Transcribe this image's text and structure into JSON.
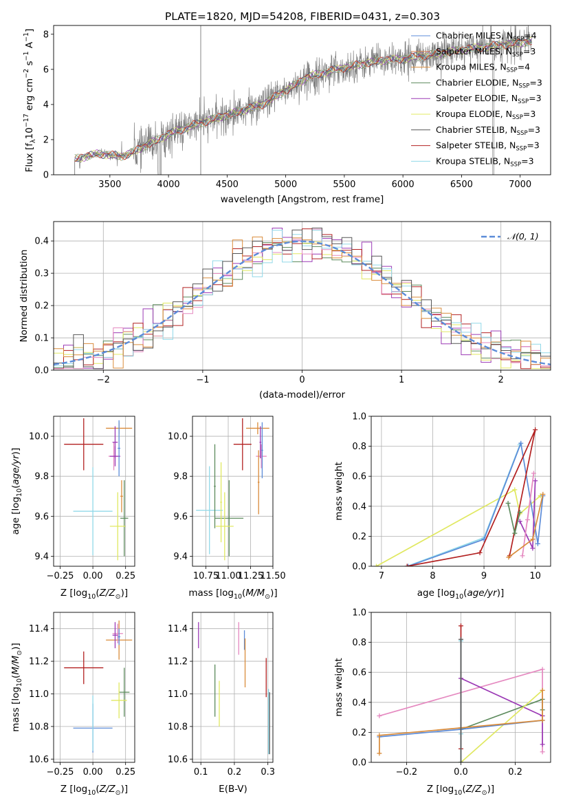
{
  "title": "PLATE=1820, MJD=54208, FIBERID=0431, z=0.303",
  "spectrum": {
    "type": "line",
    "xlabel": "wavelength [Angstrom, rest frame]",
    "ylabel": "Flux [f$_\\lambda$10$^{-17}$ erg cm$^{-2}$ s$^{-1}$ A$^{-1}$]",
    "ylabel_parts": [
      "Flux [f",
      "λ",
      "10",
      "−17",
      " erg cm",
      "−2",
      " s",
      "−1",
      " A",
      "−1",
      "]"
    ],
    "xlim": [
      3020,
      7260
    ],
    "ylim": [
      0,
      8.5
    ],
    "xticks": [
      3500,
      4000,
      4500,
      5000,
      5500,
      6000,
      6500,
      7000
    ],
    "yticks": [
      0,
      2,
      4,
      6,
      8
    ],
    "x_range_data": [
      3200,
      7100
    ],
    "features": {
      "spike_x": 4275,
      "drop_x": [
        3915,
        3935,
        6770
      ],
      "step_up_x": 3205
    },
    "continuum": [
      [
        3200,
        0.9
      ],
      [
        3400,
        1.2
      ],
      [
        3600,
        1.05
      ],
      [
        3700,
        1.3
      ],
      [
        3850,
        1.8
      ],
      [
        4000,
        2.3
      ],
      [
        4200,
        2.8
      ],
      [
        4500,
        3.4
      ],
      [
        4800,
        4.0
      ],
      [
        5000,
        4.8
      ],
      [
        5200,
        5.6
      ],
      [
        5500,
        6.1
      ],
      [
        5800,
        6.5
      ],
      [
        6000,
        6.6
      ],
      [
        6300,
        6.9
      ],
      [
        6600,
        7.2
      ],
      [
        7000,
        7.5
      ],
      [
        7100,
        7.6
      ]
    ],
    "legend_entries": [
      "Chabrier MILES, N$_{SSP}$=4",
      "Salpeter MILES, N$_{SSP}$=3",
      "Kroupa MILES, N$_{SSP}$=4",
      "Chabrier ELODIE, N$_{SSP}$=3",
      "Salpeter ELODIE, N$_{SSP}$=3",
      "Kroupa ELODIE, N$_{SSP}$=3",
      "Chabrier STELIB, N$_{SSP}$=3",
      "Salpeter STELIB, N$_{SSP}$=3",
      "Kroupa STELIB, N$_{SSP}$=3"
    ],
    "legend_labels": [
      {
        "pre": "Chabrier MILES, N",
        "sub": "SSP",
        "post": "=4"
      },
      {
        "pre": "Salpeter MILES, N",
        "sub": "SSP",
        "post": "=3"
      },
      {
        "pre": "Kroupa MILES, N",
        "sub": "SSP",
        "post": "=4"
      },
      {
        "pre": "Chabrier ELODIE, N",
        "sub": "SSP",
        "post": "=3"
      },
      {
        "pre": "Salpeter ELODIE, N",
        "sub": "SSP",
        "post": "=3"
      },
      {
        "pre": "Kroupa ELODIE, N",
        "sub": "SSP",
        "post": "=3"
      },
      {
        "pre": "Chabrier STELIB, N",
        "sub": "SSP",
        "post": "=3"
      },
      {
        "pre": "Salpeter STELIB, N",
        "sub": "SSP",
        "post": "=3"
      },
      {
        "pre": "Kroupa STELIB, N",
        "sub": "SSP",
        "post": "=3"
      }
    ],
    "legend_placement": "right",
    "series_colors": [
      "#5b8bd8",
      "#dd8452",
      "#d98b3a",
      "#5c8a5c",
      "#9b39b5",
      "#e0e860",
      "#555555",
      "#b22020",
      "#90d8e8"
    ]
  },
  "residual_hist": {
    "type": "histogram",
    "xlabel": "(data-model)/error",
    "ylabel": "Normed distribution",
    "xlim": [
      -2.5,
      2.5
    ],
    "ylim": [
      0,
      0.46
    ],
    "xticks": [
      -2,
      -1,
      0,
      1,
      2
    ],
    "yticks": [
      0.0,
      0.1,
      0.2,
      0.3,
      0.4
    ],
    "grid": true,
    "bin_edges_start": -2.5,
    "bin_width": 0.1,
    "gaussian_label": "$\\mathcal{N}(0,1)$",
    "gaussian_label_text": "𝒩(0, 1)",
    "gaussian_color": "#5b8bd8",
    "legend_placement": "top-right",
    "hist_colors": [
      "#5c8a5c",
      "#9b39b5",
      "#e0e860",
      "#b22020",
      "#e589c0",
      "#90d8e8",
      "#d98b3a",
      "#555555"
    ]
  },
  "panels": {
    "age_Z": {
      "xlabel": "Z [log$_{10}$($Z/Z_\\odot$)]",
      "ylabel": "age  [log$_{10}$($age/yr$)]",
      "xlim": [
        -0.3,
        0.32
      ],
      "ylim": [
        9.35,
        10.1
      ],
      "xticks": [
        -0.25,
        0.0,
        0.25
      ],
      "xticklabels": [
        "−0.25",
        "0.00",
        "0.25"
      ],
      "yticks": [
        9.4,
        9.6,
        9.8,
        10.0
      ],
      "points": [
        {
          "x": -0.07,
          "y": 9.96,
          "xerr": 0.15,
          "yerr": 0.13,
          "color": "#b22020"
        },
        {
          "x": 0.0,
          "y": 9.625,
          "xerr": 0.15,
          "yerr": 0.22,
          "color": "#90d8e8"
        },
        {
          "x": 0.2,
          "y": 10.04,
          "xerr": 0.1,
          "yerr": 0.03,
          "color": "#d98b3a"
        },
        {
          "x": 0.16,
          "y": 9.9,
          "xerr": 0.04,
          "yerr": 0.07,
          "color": "#e589c0"
        },
        {
          "x": 0.17,
          "y": 9.97,
          "xerr": 0.02,
          "yerr": 0.08,
          "color": "#9b39b5"
        },
        {
          "x": 0.17,
          "y": 9.9,
          "xerr": 0.04,
          "yerr": 0.05,
          "color": "#9b39b5"
        },
        {
          "x": 0.2,
          "y": 9.94,
          "xerr": 0.01,
          "yerr": 0.14,
          "color": "#5b8bd8"
        },
        {
          "x": 0.24,
          "y": 9.59,
          "xerr": 0.03,
          "yerr": 0.19,
          "color": "#5c8a5c"
        },
        {
          "x": 0.19,
          "y": 9.55,
          "xerr": 0.06,
          "yerr": 0.17,
          "color": "#e0e860"
        },
        {
          "x": 0.22,
          "y": 9.7,
          "xerr": 0.01,
          "yerr": 0.08,
          "color": "#d98b3a"
        }
      ]
    },
    "age_mass": {
      "xlabel": "mass [log$_{10}$($M/M_\\odot$)]",
      "xlim": [
        10.6,
        11.5
      ],
      "ylim": [
        9.35,
        10.1
      ],
      "xticks": [
        10.75,
        11.0,
        11.25,
        11.5
      ],
      "xticklabels": [
        "10.75",
        "11.00",
        "11.25",
        "11.50"
      ],
      "yticks": [
        9.4,
        9.6,
        9.8,
        10.0
      ],
      "points": [
        {
          "x": 11.16,
          "y": 9.96,
          "xerr": 0.1,
          "yerr": 0.13,
          "color": "#b22020"
        },
        {
          "x": 10.79,
          "y": 9.63,
          "xerr": 0.15,
          "yerr": 0.22,
          "color": "#90d8e8"
        },
        {
          "x": 11.33,
          "y": 10.04,
          "xerr": 0.13,
          "yerr": 0.03,
          "color": "#d98b3a"
        },
        {
          "x": 11.37,
          "y": 9.9,
          "xerr": 0.06,
          "yerr": 0.06,
          "color": "#e589c0"
        },
        {
          "x": 11.36,
          "y": 9.97,
          "xerr": 0.01,
          "yerr": 0.08,
          "color": "#9b39b5"
        },
        {
          "x": 11.38,
          "y": 9.93,
          "xerr": 0.01,
          "yerr": 0.14,
          "color": "#5b8bd8"
        },
        {
          "x": 11.01,
          "y": 9.59,
          "xerr": 0.16,
          "yerr": 0.19,
          "color": "#5c8a5c"
        },
        {
          "x": 10.96,
          "y": 9.55,
          "xerr": 0.1,
          "yerr": 0.17,
          "color": "#e0e860"
        },
        {
          "x": 10.85,
          "y": 9.75,
          "xerr": 0.01,
          "yerr": 0.21,
          "color": "#5c8a5c"
        },
        {
          "x": 10.92,
          "y": 9.67,
          "xerr": 0.01,
          "yerr": 0.2,
          "color": "#e0e860"
        },
        {
          "x": 11.34,
          "y": 9.77,
          "xerr": 0.01,
          "yerr": 0.16,
          "color": "#d98b3a"
        }
      ]
    },
    "mw_age": {
      "type": "line",
      "xlabel": "age  [log$_{10}$($age/yr$)]",
      "ylabel": "mass weight",
      "xlim": [
        6.8,
        10.3
      ],
      "ylim": [
        0,
        1
      ],
      "xticks": [
        7,
        8,
        9,
        10
      ],
      "yticks": [
        0.0,
        0.2,
        0.4,
        0.6,
        0.8,
        1.0
      ],
      "grid": true,
      "series": [
        {
          "color": "#e0e860",
          "points": [
            [
              6.9,
              0.0
            ],
            [
              9.6,
              0.51
            ],
            [
              9.7,
              0.35
            ],
            [
              10.1,
              0.47
            ]
          ]
        },
        {
          "color": "#90d8e8",
          "points": [
            [
              7.5,
              0.0
            ],
            [
              9.0,
              0.19
            ],
            [
              9.7,
              0.81
            ]
          ]
        },
        {
          "color": "#5b8bd8",
          "points": [
            [
              7.52,
              0.0
            ],
            [
              9.0,
              0.18
            ],
            [
              9.72,
              0.82
            ],
            [
              10.05,
              0.15
            ],
            [
              10.15,
              0.47
            ]
          ]
        },
        {
          "color": "#b22020",
          "points": [
            [
              7.5,
              0.0
            ],
            [
              8.92,
              0.09
            ],
            [
              10.0,
              0.91
            ],
            [
              9.5,
              0.07
            ]
          ]
        },
        {
          "color": "#9b39b5",
          "points": [
            [
              9.7,
              0.3
            ],
            [
              9.95,
              0.12
            ],
            [
              10.0,
              0.57
            ]
          ]
        },
        {
          "color": "#e589c0",
          "points": [
            [
              9.75,
              0.07
            ],
            [
              9.97,
              0.62
            ],
            [
              9.85,
              0.31
            ]
          ]
        },
        {
          "color": "#d98b3a",
          "points": [
            [
              9.48,
              0.06
            ],
            [
              9.95,
              0.18
            ],
            [
              10.15,
              0.48
            ]
          ]
        },
        {
          "color": "#5c8a5c",
          "points": [
            [
              9.47,
              0.42
            ],
            [
              9.6,
              0.22
            ],
            [
              9.7,
              0.36
            ]
          ]
        }
      ]
    },
    "mass_Z": {
      "xlabel": "Z [log$_{10}$($Z/Z_\\odot$)]",
      "ylabel": "mass [log$_{10}$($M/M_\\odot$)]",
      "xlim": [
        -0.3,
        0.32
      ],
      "ylim": [
        10.58,
        11.5
      ],
      "xticks": [
        -0.25,
        0.0,
        0.25
      ],
      "xticklabels": [
        "−0.25",
        "0.00",
        "0.25"
      ],
      "yticks": [
        10.6,
        10.8,
        11.0,
        11.2,
        11.4
      ],
      "points": [
        {
          "x": -0.07,
          "y": 11.16,
          "xerr": 0.15,
          "yerr": 0.1,
          "color": "#b22020"
        },
        {
          "x": 0.0,
          "y": 10.79,
          "xerr": 0.15,
          "yerr": 0.15,
          "color": "#5b8bd8"
        },
        {
          "x": 0.0,
          "y": 10.82,
          "xerr": 0.0,
          "yerr": 0.17,
          "color": "#90d8e8"
        },
        {
          "x": 0.2,
          "y": 11.33,
          "xerr": 0.1,
          "yerr": 0.12,
          "color": "#d98b3a"
        },
        {
          "x": 0.19,
          "y": 11.37,
          "xerr": 0.04,
          "yerr": 0.06,
          "color": "#e589c0"
        },
        {
          "x": 0.17,
          "y": 11.36,
          "xerr": 0.02,
          "yerr": 0.08,
          "color": "#9b39b5"
        },
        {
          "x": 0.2,
          "y": 11.35,
          "xerr": 0.01,
          "yerr": 0.05,
          "color": "#5b8bd8"
        },
        {
          "x": 0.24,
          "y": 11.01,
          "xerr": 0.04,
          "yerr": 0.15,
          "color": "#5c8a5c"
        },
        {
          "x": 0.2,
          "y": 10.96,
          "xerr": 0.06,
          "yerr": 0.11,
          "color": "#e0e860"
        }
      ]
    },
    "mass_ebv": {
      "xlabel": "E(B-V)",
      "xlim": [
        0.075,
        0.315
      ],
      "ylim": [
        10.58,
        11.5
      ],
      "xticks": [
        0.1,
        0.2,
        0.3
      ],
      "xticklabels": [
        "0.1",
        "0.2",
        "0.3"
      ],
      "yticks": [
        10.6,
        10.8,
        11.0,
        11.2,
        11.4
      ],
      "points": [
        {
          "x": 0.093,
          "y": 11.36,
          "yerr": 0.08,
          "color": "#9b39b5"
        },
        {
          "x": 0.142,
          "y": 11.02,
          "yerr": 0.16,
          "color": "#5c8a5c"
        },
        {
          "x": 0.155,
          "y": 10.94,
          "yerr": 0.14,
          "color": "#e0e860"
        },
        {
          "x": 0.213,
          "y": 11.34,
          "yerr": 0.1,
          "color": "#e589c0"
        },
        {
          "x": 0.23,
          "y": 11.33,
          "yerr": 0.06,
          "color": "#5b8bd8"
        },
        {
          "x": 0.232,
          "y": 11.19,
          "yerr": 0.15,
          "color": "#d98b3a"
        },
        {
          "x": 0.295,
          "y": 11.1,
          "yerr": 0.12,
          "color": "#b22020"
        },
        {
          "x": 0.302,
          "y": 10.83,
          "yerr": 0.2,
          "color": "#90d8e8"
        },
        {
          "x": 0.305,
          "y": 10.82,
          "yerr": 0.19,
          "color": "#555555"
        }
      ]
    },
    "mw_Z": {
      "type": "line",
      "xlabel": "Z [log$_{10}$($Z/Z_\\odot$)]",
      "ylabel": "mass weight",
      "xlim": [
        -0.33,
        0.33
      ],
      "ylim": [
        0,
        1
      ],
      "xticks": [
        -0.2,
        0.0,
        0.2
      ],
      "xticklabels": [
        "−0.2",
        "0.0",
        "0.2"
      ],
      "yticks": [
        0.0,
        0.2,
        0.4,
        0.6,
        0.8,
        1.0
      ],
      "grid": true,
      "series": [
        {
          "color": "#e589c0",
          "points": [
            [
              -0.3,
              0.31
            ],
            [
              0.3,
              0.62
            ],
            [
              0.3,
              0.07
            ]
          ]
        },
        {
          "color": "#9b39b5",
          "points": [
            [
              0.0,
              0.56
            ],
            [
              0.3,
              0.31
            ],
            [
              0.3,
              0.12
            ]
          ]
        },
        {
          "color": "#5c8a5c",
          "points": [
            [
              0.0,
              0.22
            ],
            [
              0.3,
              0.42
            ],
            [
              0.3,
              0.35
            ]
          ]
        },
        {
          "color": "#e0e860",
          "points": [
            [
              0.0,
              0.0
            ],
            [
              0.3,
              0.48
            ]
          ]
        },
        {
          "color": "#5b8bd8",
          "points": [
            [
              -0.3,
              0.17
            ],
            [
              0.0,
              0.22
            ],
            [
              0.3,
              0.28
            ]
          ]
        },
        {
          "color": "#d98b3a",
          "points": [
            [
              -0.3,
              0.06
            ],
            [
              -0.3,
              0.18
            ],
            [
              0.0,
              0.23
            ],
            [
              0.3,
              0.28
            ],
            [
              0.3,
              0.48
            ]
          ]
        },
        {
          "color": "#b22020",
          "points": [
            [
              0.0,
              0.91
            ],
            [
              0.0,
              0.09
            ]
          ]
        },
        {
          "color": "#90d8e8",
          "points": [
            [
              0.0,
              0.81
            ],
            [
              0.0,
              0.19
            ],
            [
              0.0,
              0.0
            ]
          ]
        },
        {
          "color": "#555555",
          "points": [
            [
              0.0,
              0.82
            ],
            [
              0.0,
              0.0
            ]
          ]
        }
      ]
    }
  },
  "tick_texts": {
    "spectrum_x": [
      "3500",
      "4000",
      "4500",
      "5000",
      "5500",
      "6000",
      "6500",
      "7000"
    ],
    "spectrum_y": [
      "0",
      "2",
      "4",
      "6",
      "8"
    ],
    "hist_x": [
      "−2",
      "−1",
      "0",
      "1",
      "2"
    ],
    "hist_y": [
      "0.0",
      "0.1",
      "0.2",
      "0.3",
      "0.4"
    ],
    "age_y": [
      "9.4",
      "9.6",
      "9.8",
      "10.0"
    ],
    "mw_x": [
      "7",
      "8",
      "9",
      "10"
    ],
    "mw_y": [
      "0.0",
      "0.2",
      "0.4",
      "0.6",
      "0.8",
      "1.0"
    ],
    "mass_y": [
      "10.6",
      "10.8",
      "11.0",
      "11.2",
      "11.4"
    ]
  }
}
